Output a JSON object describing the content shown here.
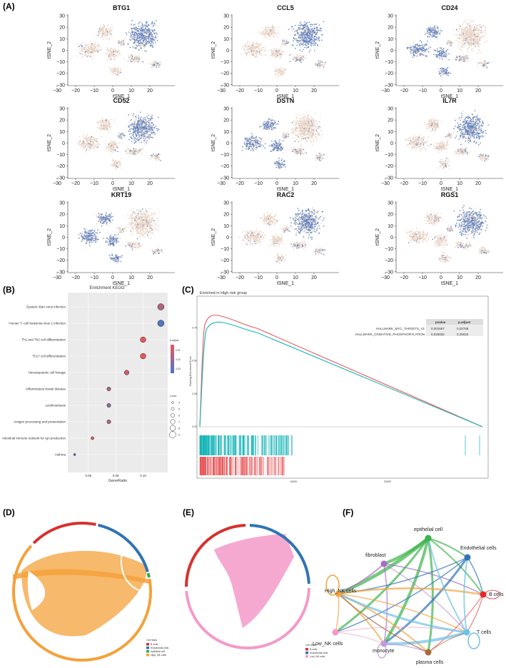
{
  "panel_labels": {
    "A": "(A)",
    "B": "(B)",
    "C": "(C)",
    "D": "(D)",
    "E": "(E)",
    "F": "(F)"
  },
  "colors": {
    "blue": "#5b7fc0",
    "beige": "#e8d3c4",
    "red": "#e8585a",
    "teal": "#17b5b8",
    "orange": "#f4a13a",
    "pink": "#f49ac8",
    "dark_blue": "#2f74b5",
    "purple": "#a76cc7"
  },
  "tsne": {
    "xlabel": "tSNE_1",
    "ylabel": "tSNE_2",
    "xticks": [
      "−30",
      "−20",
      "−10",
      "0",
      "10",
      "20"
    ],
    "yticks": [
      "30",
      "20",
      "10",
      "0",
      "−10",
      "−20",
      "−30"
    ],
    "genes": [
      {
        "name": "BTG1",
        "high": "tcell"
      },
      {
        "name": "CCL5",
        "high": "tcell"
      },
      {
        "name": "CD24",
        "high": "epi"
      },
      {
        "name": "CD52",
        "high": "tcell"
      },
      {
        "name": "DSTN",
        "high": "epi"
      },
      {
        "name": "IL7R",
        "high": "tcell"
      },
      {
        "name": "KRT19",
        "high": "epi"
      },
      {
        "name": "RAC2",
        "high": "tcell"
      },
      {
        "name": "RGS1",
        "high": "tcell"
      }
    ]
  },
  "kegg": {
    "title": "Enrichment KEGG",
    "xlabel": "GeneRatio",
    "xticks": [
      "0.06",
      "0.08",
      "0.10"
    ],
    "terms": [
      {
        "label": "Epstein−Barr virus infection",
        "ratio": 0.113,
        "padj": 0.012
      },
      {
        "label": "Human T−cell leukemia virus 1 infection",
        "ratio": 0.113,
        "padj": 0.024
      },
      {
        "label": "Th1 and Th2 cell differentiation",
        "ratio": 0.1,
        "padj": 0.005
      },
      {
        "label": "Th17 cell differentiation",
        "ratio": 0.1,
        "padj": 0.005
      },
      {
        "label": "Hematopoietic cell lineage",
        "ratio": 0.088,
        "padj": 0.008
      },
      {
        "label": "Inflammatory bowel disease",
        "ratio": 0.075,
        "padj": 0.013
      },
      {
        "label": "Leishmaniasis",
        "ratio": 0.075,
        "padj": 0.016
      },
      {
        "label": "Antigen processing and presentation",
        "ratio": 0.075,
        "padj": 0.012
      },
      {
        "label": "Intestinal immune network for IgA production",
        "ratio": 0.063,
        "padj": 0.006
      },
      {
        "label": "Asthma",
        "ratio": 0.05,
        "padj": 0.025
      }
    ],
    "legend_padj_title": "p.adjust",
    "legend_padj_ticks": [
      "0.01",
      "0.02",
      "0.03"
    ],
    "legend_count_title": "Count",
    "legend_count_values": [
      "4",
      "5",
      "6",
      "7",
      "8",
      "9"
    ]
  },
  "gsea": {
    "title": "Enriched in High risk group",
    "ylabel": "Running Enrichment Score",
    "yticks": [
      "0.75",
      "0.50",
      "0.25",
      "0.00"
    ],
    "xticks": [
      "10000",
      "20000"
    ],
    "table_headers": [
      "pvalue",
      "p.adjust"
    ],
    "rows": [
      {
        "name": "HALLMARK_MYC_TARGETS_V1",
        "pvalue": "0.001667",
        "padj": "0.02788",
        "color": "#e8585a"
      },
      {
        "name": "HALLMARK_OXIDATIVE_PHOSPHORYLATION",
        "pvalue": "0.025032",
        "padj": "0.25032",
        "color": "#17b5b8"
      }
    ]
  },
  "chord_d": {
    "legend_title": "Cell Stats",
    "legend": [
      {
        "label": "B cells",
        "color": "#d7312d"
      },
      {
        "label": "Endothelial cells",
        "color": "#2f74b5"
      },
      {
        "label": "epithelial cell",
        "color": "#3aa845"
      },
      {
        "label": "High_NK cells",
        "color": "#f4a13a"
      }
    ]
  },
  "chord_e": {
    "legend_title": "Cell Stats",
    "legend": [
      {
        "label": "B cells",
        "color": "#d7312d"
      },
      {
        "label": "Endothelial cells",
        "color": "#2f74b5"
      },
      {
        "label": "Low_NK cells",
        "color": "#f49ac8"
      }
    ]
  },
  "network": {
    "nodes": [
      {
        "label": "epithelial cell",
        "color": "#3db34a"
      },
      {
        "label": "fibroblast",
        "color": "#a76cc7"
      },
      {
        "label": "Endothelial cells",
        "color": "#2f74b5"
      },
      {
        "label": "High_NK cells",
        "color": "#f4a13a"
      },
      {
        "label": "B cells",
        "color": "#e8262a"
      },
      {
        "label": "Low_NK cells",
        "color": "#f49ac8"
      },
      {
        "label": "T cells",
        "color": "#6ec1e8"
      },
      {
        "label": "monocyte",
        "color": "#c59ad8"
      },
      {
        "label": "plasma cells",
        "color": "#a86a3a"
      }
    ]
  }
}
